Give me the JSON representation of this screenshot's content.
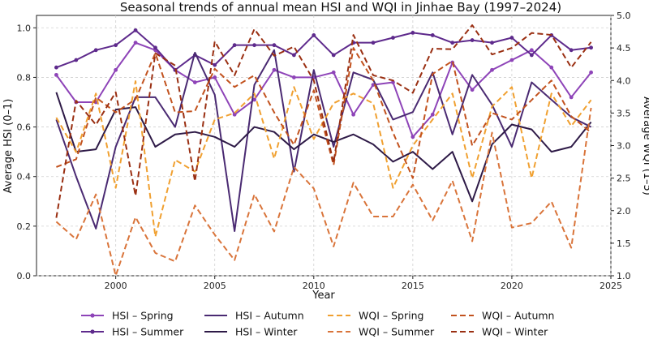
{
  "chart_data": {
    "type": "line",
    "title": "Seasonal trends of annual mean HSI and WQI in Jinhae Bay (1997–2024)",
    "xlabel": "Year",
    "ylabel_left": "Average HSI (0–1)",
    "ylabel_right": "Average WQI (1–5)",
    "xlim": [
      1996,
      2025
    ],
    "ylim_left": [
      0.0,
      1.05
    ],
    "ylim_right": [
      1.0,
      5.0
    ],
    "x_ticks": [
      2000,
      2005,
      2010,
      2015,
      2020,
      2025
    ],
    "x_tick_labels": [
      "2000",
      "2005",
      "2010",
      "2015",
      "2020",
      "2025"
    ],
    "y_left_ticks": [
      0.0,
      0.2,
      0.4,
      0.6,
      0.8,
      1.0
    ],
    "y_left_tick_labels": [
      "0.0",
      "0.2",
      "0.4",
      "0.6",
      "0.8",
      "1.0"
    ],
    "y_right_ticks": [
      1.0,
      1.5,
      2.0,
      2.5,
      3.0,
      3.5,
      4.0,
      4.5,
      5.0
    ],
    "y_right_tick_labels": [
      "1.0",
      "1.5",
      "2.0",
      "2.5",
      "3.0",
      "3.5",
      "4.0",
      "4.5",
      "5.0"
    ],
    "grid": true,
    "legend_position": "bottom",
    "x": [
      1997,
      1998,
      1999,
      2000,
      2001,
      2002,
      2003,
      2004,
      2005,
      2006,
      2007,
      2008,
      2009,
      2010,
      2011,
      2012,
      2013,
      2014,
      2015,
      2016,
      2017,
      2018,
      2019,
      2020,
      2021,
      2022,
      2023,
      2024
    ],
    "series": [
      {
        "name": "HSI – Spring",
        "axis": "left",
        "style": "solid",
        "color": "#8e44b8",
        "marker": true,
        "values": [
          0.81,
          0.7,
          0.7,
          0.83,
          0.94,
          0.91,
          0.83,
          0.78,
          0.8,
          0.65,
          0.71,
          0.83,
          0.8,
          0.8,
          0.82,
          0.65,
          0.77,
          0.78,
          0.56,
          0.65,
          0.86,
          0.75,
          0.83,
          0.87,
          0.91,
          0.84,
          0.72,
          0.82
        ]
      },
      {
        "name": "HSI – Summer",
        "axis": "left",
        "style": "solid",
        "color": "#5e2a8c",
        "marker": true,
        "values": [
          0.84,
          0.87,
          0.91,
          0.93,
          0.99,
          0.92,
          0.83,
          0.89,
          0.85,
          0.93,
          0.93,
          0.93,
          0.89,
          0.97,
          0.89,
          0.94,
          0.94,
          0.96,
          0.98,
          0.97,
          0.94,
          0.95,
          0.94,
          0.96,
          0.89,
          0.97,
          0.91,
          0.92
        ]
      },
      {
        "name": "HSI – Autumn",
        "axis": "left",
        "style": "solid",
        "color": "#4a2a72",
        "marker": false,
        "values": [
          0.63,
          0.4,
          0.19,
          0.52,
          0.72,
          0.72,
          0.6,
          0.9,
          0.73,
          0.18,
          0.77,
          0.91,
          0.42,
          0.83,
          0.52,
          0.82,
          0.79,
          0.63,
          0.66,
          0.82,
          0.57,
          0.81,
          0.69,
          0.52,
          0.78,
          0.71,
          0.64,
          0.6
        ]
      },
      {
        "name": "HSI – Winter",
        "axis": "left",
        "style": "solid",
        "color": "#2e1a47",
        "marker": false,
        "values": [
          0.74,
          0.5,
          0.51,
          0.67,
          0.68,
          0.52,
          0.57,
          0.58,
          0.56,
          0.52,
          0.6,
          0.58,
          0.51,
          0.57,
          0.54,
          0.57,
          0.53,
          0.46,
          0.5,
          0.43,
          0.5,
          0.3,
          0.53,
          0.61,
          0.59,
          0.5,
          0.52,
          0.62
        ]
      },
      {
        "name": "WQI – Spring",
        "axis": "right",
        "style": "dashed",
        "color": "#f0a030",
        "marker": false,
        "values": [
          3.43,
          2.9,
          3.8,
          2.35,
          3.99,
          1.6,
          2.78,
          2.6,
          3.4,
          3.5,
          3.8,
          2.8,
          3.9,
          3.1,
          3.65,
          3.8,
          3.65,
          2.35,
          3.0,
          3.4,
          3.8,
          2.5,
          3.6,
          3.9,
          2.5,
          3.8,
          3.3,
          3.7
        ]
      },
      {
        "name": "WQI – Summer",
        "axis": "right",
        "style": "dashed",
        "color": "#d9743a",
        "marker": false,
        "values": [
          1.83,
          1.56,
          2.25,
          1.0,
          1.9,
          1.35,
          1.22,
          2.08,
          1.63,
          1.24,
          2.25,
          1.68,
          2.67,
          2.34,
          1.45,
          2.43,
          1.91,
          1.91,
          2.4,
          1.85,
          2.46,
          1.53,
          3.2,
          1.74,
          1.81,
          2.14,
          1.43,
          3.58
        ]
      },
      {
        "name": "WQI – Autumn",
        "axis": "right",
        "style": "dashed",
        "color": "#c2521e",
        "marker": false,
        "values": [
          2.67,
          2.79,
          3.74,
          3.51,
          3.71,
          4.42,
          3.51,
          3.53,
          4.18,
          3.9,
          4.08,
          3.51,
          3.01,
          3.85,
          2.7,
          4.5,
          4.0,
          3.2,
          2.5,
          4.1,
          4.3,
          3.0,
          3.5,
          3.4,
          3.7,
          4.0,
          3.45,
          3.2
        ]
      },
      {
        "name": "WQI – Winter",
        "axis": "right",
        "style": "dashed",
        "color": "#9a2f12",
        "marker": false,
        "values": [
          1.89,
          3.69,
          3.32,
          3.82,
          2.23,
          4.42,
          4.23,
          2.45,
          4.6,
          4.08,
          4.79,
          4.38,
          4.52,
          4.0,
          2.74,
          4.7,
          4.08,
          4.0,
          3.81,
          4.49,
          4.48,
          4.85,
          4.4,
          4.5,
          4.73,
          4.7,
          4.2,
          4.59
        ]
      }
    ]
  }
}
